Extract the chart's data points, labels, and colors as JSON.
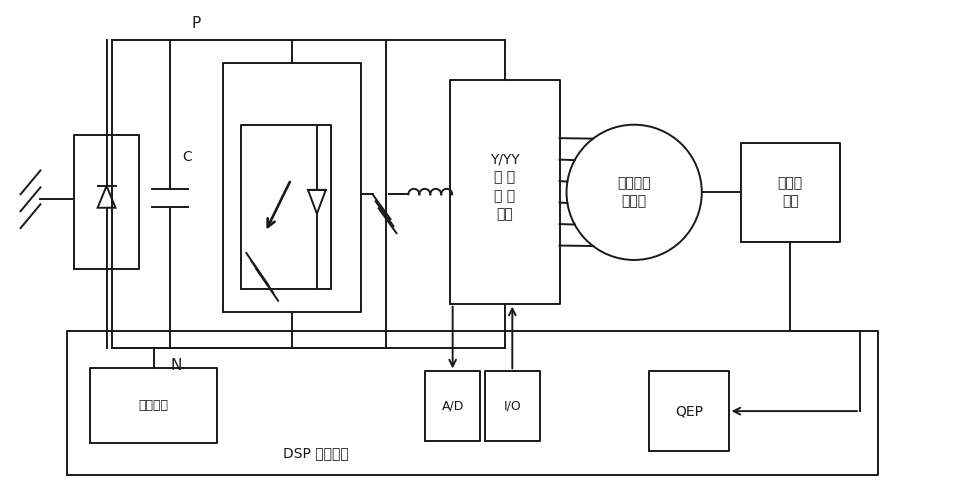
{
  "bg_color": "#ffffff",
  "lc": "#1a1a1a",
  "lw": 1.4,
  "labels": {
    "P": "P",
    "N": "N",
    "C": "C",
    "yy": "Y/YY\n变 换\n控 制\n电路",
    "motor": "三相交流\n电动机",
    "sensor": "速度传\n感器",
    "drive": "驱动电路",
    "ad": "A/D",
    "io": "I/O",
    "dsp": "DSP 控制系统",
    "qep": "QEP"
  },
  "font_main": 10,
  "font_small": 9,
  "font_label": 11
}
